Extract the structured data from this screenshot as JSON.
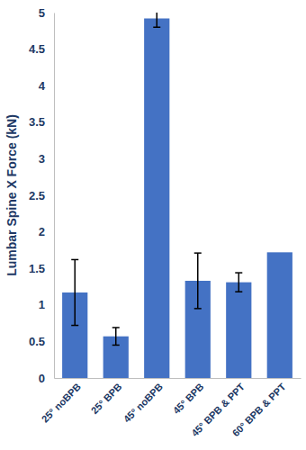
{
  "chart_data": {
    "type": "bar",
    "y_label": "Lumbar Spine X Force (kN)",
    "categories": [
      "25° noBPB",
      "25° BPB",
      "45° noBPB",
      "45° BPB",
      "45° BPB & PPT",
      "60° BPB & PPT"
    ],
    "values": [
      1.17,
      0.57,
      4.92,
      1.33,
      1.31,
      1.72
    ],
    "errors": [
      0.45,
      0.12,
      0.12,
      0.38,
      0.13,
      null
    ],
    "color": "#4472c4",
    "ylim": [
      0,
      5
    ],
    "yticks": [
      0,
      0.5,
      1,
      1.5,
      2,
      2.5,
      3,
      3.5,
      4,
      4.5,
      5
    ],
    "grid": false
  }
}
